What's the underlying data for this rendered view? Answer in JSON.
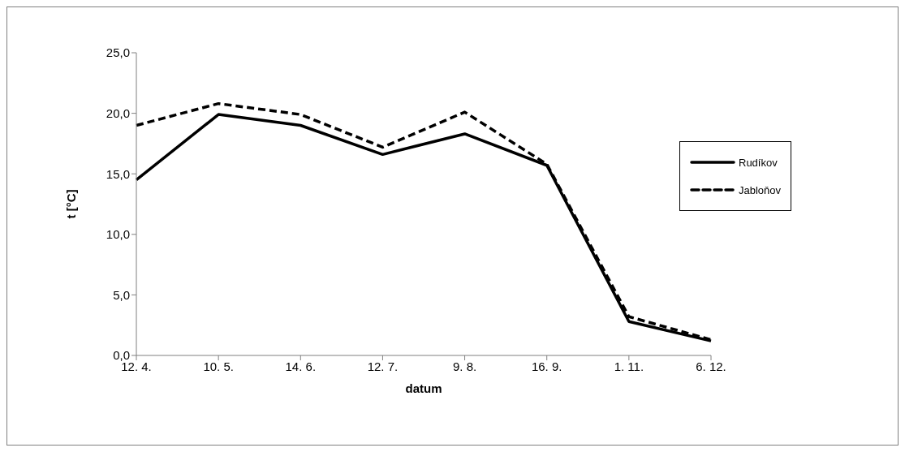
{
  "chart_data": {
    "type": "line",
    "xlabel": "datum",
    "ylabel": "t  [°C]",
    "categories": [
      "12. 4.",
      "10. 5.",
      "14. 6.",
      "12. 7.",
      "9. 8.",
      "16. 9.",
      "1. 11.",
      "6. 12."
    ],
    "series": [
      {
        "name": "Rudíkov",
        "color": "#000000",
        "line_style": "solid",
        "values": [
          14.5,
          19.9,
          19.0,
          16.6,
          18.3,
          15.7,
          2.8,
          1.2
        ]
      },
      {
        "name": "Jabloňov",
        "color": "#000000",
        "line_style": "dashed",
        "values": [
          19.0,
          20.8,
          19.9,
          17.2,
          20.1,
          15.8,
          3.2,
          1.3
        ]
      }
    ],
    "ylim": [
      0,
      25
    ],
    "yticks": [
      {
        "value": 0,
        "label": "0,0"
      },
      {
        "value": 5,
        "label": "5,0"
      },
      {
        "value": 10,
        "label": "10,0"
      },
      {
        "value": 15,
        "label": "15,0"
      },
      {
        "value": 20,
        "label": "20,0"
      },
      {
        "value": 25,
        "label": "25,0"
      }
    ],
    "grid": false,
    "legend": "right",
    "marker": "none"
  }
}
